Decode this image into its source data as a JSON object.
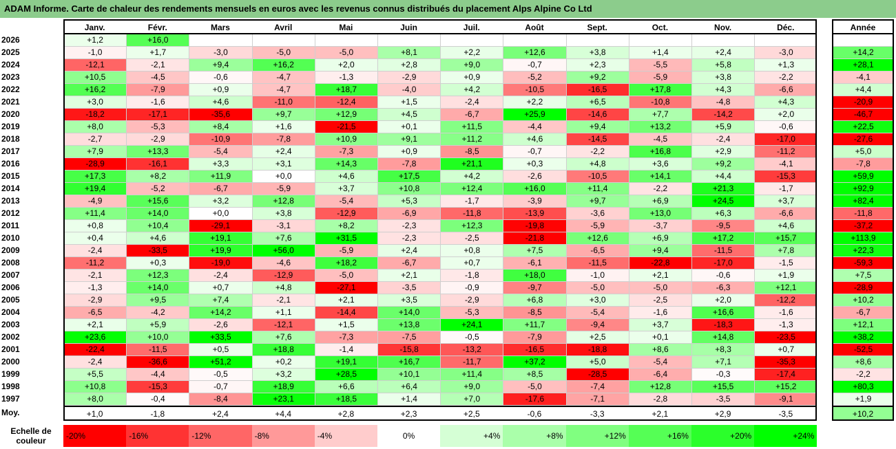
{
  "title": "ADAM Informe. Carte de chaleur des rendements mensuels en euros avec les revenus connus distribués du placement Alps Alpine Co Ltd",
  "month_headers": [
    "Janv.",
    "Févr.",
    "Mars",
    "Avril",
    "Mai",
    "Juin",
    "Juil.",
    "Août",
    "Sept.",
    "Oct.",
    "Nov.",
    "Déc."
  ],
  "annual_header": "Année",
  "average_label": "Moy.",
  "scale_label_line1": "Echelle de",
  "scale_label_line2": "couleur",
  "colors": {
    "neg_max": "#ff0000",
    "pos_max": "#00ff00",
    "neutral": "#ffffff",
    "title_bg": "#8ccc8c"
  },
  "color_scale": [
    {
      "value": -20,
      "label": "-20%"
    },
    {
      "value": -16,
      "label": "-16%"
    },
    {
      "value": -12,
      "label": "-12%"
    },
    {
      "value": -8,
      "label": "-8%"
    },
    {
      "value": -4,
      "label": "-4%"
    },
    {
      "value": 0,
      "label": "0%"
    },
    {
      "value": 4,
      "label": "+4%"
    },
    {
      "value": 8,
      "label": "+8%"
    },
    {
      "value": 12,
      "label": "+12%"
    },
    {
      "value": 16,
      "label": "+16%"
    },
    {
      "value": 20,
      "label": "+20%"
    },
    {
      "value": 24,
      "label": "+24%"
    }
  ],
  "chart_data": {
    "type": "heatmap",
    "title": "ADAM Informe. Carte de chaleur des rendements mensuels en euros avec les revenus connus distribués du placement Alps Alpine Co Ltd",
    "columns": [
      "Janv.",
      "Févr.",
      "Mars",
      "Avril",
      "Mai",
      "Juin",
      "Juil.",
      "Août",
      "Sept.",
      "Oct.",
      "Nov.",
      "Déc."
    ],
    "rows": [
      {
        "year": "2026",
        "months": [
          "+1,2",
          "+16,0",
          null,
          null,
          null,
          null,
          null,
          null,
          null,
          null,
          null,
          null
        ],
        "annual": null
      },
      {
        "year": "2025",
        "months": [
          "-1,0",
          "+1,7",
          "-3,0",
          "-5,0",
          "-5,0",
          "+8,1",
          "+2,2",
          "+12,6",
          "+3,8",
          "+1,4",
          "+2,4",
          "-3,0"
        ],
        "annual": "+14,2"
      },
      {
        "year": "2024",
        "months": [
          "-12,1",
          "-2,1",
          "+9,4",
          "+16,2",
          "+2,0",
          "+2,8",
          "+9,0",
          "-0,7",
          "+2,3",
          "-5,5",
          "+5,8",
          "+1,3"
        ],
        "annual": "+28,1"
      },
      {
        "year": "2023",
        "months": [
          "+10,5",
          "-4,5",
          "-0,6",
          "-4,7",
          "-1,3",
          "-2,9",
          "+0,9",
          "-5,2",
          "+9,2",
          "-5,9",
          "+3,8",
          "-2,2"
        ],
        "annual": "-4,1"
      },
      {
        "year": "2022",
        "months": [
          "+16,2",
          "-7,9",
          "+0,9",
          "-4,7",
          "+18,7",
          "-4,0",
          "+4,2",
          "-10,5",
          "-16,5",
          "+17,8",
          "+4,3",
          "-6,6"
        ],
        "annual": "+4,4"
      },
      {
        "year": "2021",
        "months": [
          "+3,0",
          "-1,6",
          "+4,6",
          "-11,0",
          "-12,4",
          "+1,5",
          "-2,4",
          "+2,2",
          "+6,5",
          "-10,8",
          "-4,8",
          "+4,3"
        ],
        "annual": "-20,9"
      },
      {
        "year": "2020",
        "months": [
          "-18,2",
          "-17,1",
          "-35,6",
          "+9,7",
          "+12,9",
          "+4,5",
          "-6,7",
          "+25,9",
          "-14,6",
          "+7,7",
          "-14,2",
          "+2,0"
        ],
        "annual": "-46,7"
      },
      {
        "year": "2019",
        "months": [
          "+8,0",
          "-5,3",
          "+8,4",
          "+1,6",
          "-21,5",
          "+0,1",
          "+11,5",
          "-4,4",
          "+9,4",
          "+13,2",
          "+5,9",
          "-0,6"
        ],
        "annual": "+22,5"
      },
      {
        "year": "2018",
        "months": [
          "-2,7",
          "-2,9",
          "-10,9",
          "-7,8",
          "+10,9",
          "+9,1",
          "+11,2",
          "+4,6",
          "-14,5",
          "-4,5",
          "-2,4",
          "-17,0"
        ],
        "annual": "-27,6"
      },
      {
        "year": "2017",
        "months": [
          "+7,9",
          "+13,3",
          "-5,4",
          "+2,4",
          "-7,3",
          "+0,9",
          "-8,5",
          "-0,7",
          "-2,2",
          "+16,8",
          "+2,9",
          "-11,2"
        ],
        "annual": "+5,0"
      },
      {
        "year": "2016",
        "months": [
          "-28,9",
          "-16,1",
          "+3,3",
          "+3,1",
          "+14,3",
          "-7,8",
          "+21,1",
          "+0,3",
          "+4,8",
          "+3,6",
          "+9,2",
          "-4,1"
        ],
        "annual": "-7,8"
      },
      {
        "year": "2015",
        "months": [
          "+17,3",
          "+8,2",
          "+11,9",
          "+0,0",
          "+4,6",
          "+17,5",
          "+4,2",
          "-2,6",
          "-10,5",
          "+14,1",
          "+4,4",
          "-15,3"
        ],
        "annual": "+59,9"
      },
      {
        "year": "2014",
        "months": [
          "+19,4",
          "-5,2",
          "-6,7",
          "-5,9",
          "+3,7",
          "+10,8",
          "+12,4",
          "+16,0",
          "+11,4",
          "-2,2",
          "+21,3",
          "-1,7"
        ],
        "annual": "+92,9"
      },
      {
        "year": "2013",
        "months": [
          "-4,9",
          "+15,6",
          "+3,2",
          "+12,8",
          "-5,4",
          "+5,3",
          "-1,7",
          "-3,9",
          "+9,7",
          "+6,9",
          "+24,5",
          "+3,7"
        ],
        "annual": "+82,4"
      },
      {
        "year": "2012",
        "months": [
          "+11,4",
          "+14,0",
          "+0,0",
          "+3,8",
          "-12,9",
          "-6,9",
          "-11,8",
          "-13,9",
          "-3,6",
          "+13,0",
          "+6,3",
          "-6,6"
        ],
        "annual": "-11,8"
      },
      {
        "year": "2011",
        "months": [
          "+0,8",
          "+10,4",
          "-29,1",
          "-3,1",
          "+8,2",
          "-2,3",
          "+12,3",
          "-19,8",
          "-5,9",
          "-3,7",
          "-9,5",
          "+4,6"
        ],
        "annual": "-37,2"
      },
      {
        "year": "2010",
        "months": [
          "+0,4",
          "+4,6",
          "+19,1",
          "+7,6",
          "+31,5",
          "-2,3",
          "-2,5",
          "-21,8",
          "+12,6",
          "+6,9",
          "+17,2",
          "+15,7"
        ],
        "annual": "+113,9"
      },
      {
        "year": "2009",
        "months": [
          "-2,4",
          "-33,5",
          "+19,9",
          "+56,0",
          "-5,9",
          "+2,4",
          "+0,8",
          "+7,5",
          "-6,5",
          "+9,4",
          "-11,5",
          "+7,8"
        ],
        "annual": "+22,3"
      },
      {
        "year": "2008",
        "months": [
          "-11,2",
          "+0,3",
          "-19,0",
          "-4,6",
          "+18,2",
          "-6,7",
          "+0,7",
          "-6,1",
          "-11,5",
          "-22,8",
          "-17,0",
          "-1,5"
        ],
        "annual": "-59,3"
      },
      {
        "year": "2007",
        "months": [
          "-2,1",
          "+12,3",
          "-2,4",
          "-12,9",
          "-5,0",
          "+2,1",
          "-1,8",
          "+18,0",
          "-1,0",
          "+2,1",
          "-0,6",
          "+1,9"
        ],
        "annual": "+7,5"
      },
      {
        "year": "2006",
        "months": [
          "-1,3",
          "+14,0",
          "+0,7",
          "+4,8",
          "-27,1",
          "-3,5",
          "-0,9",
          "-9,7",
          "-5,0",
          "-5,0",
          "-6,3",
          "+12,1"
        ],
        "annual": "-28,9"
      },
      {
        "year": "2005",
        "months": [
          "-2,9",
          "+9,5",
          "+7,4",
          "-2,1",
          "+2,1",
          "+3,5",
          "-2,9",
          "+6,8",
          "+3,0",
          "-2,5",
          "+2,0",
          "-12,2"
        ],
        "annual": "+10,2"
      },
      {
        "year": "2004",
        "months": [
          "-6,5",
          "-4,2",
          "+14,2",
          "+1,1",
          "-14,4",
          "+14,0",
          "-5,3",
          "-8,5",
          "-5,4",
          "-1,6",
          "+16,6",
          "-1,6"
        ],
        "annual": "-6,7"
      },
      {
        "year": "2003",
        "months": [
          "+2,1",
          "+5,9",
          "-2,6",
          "-12,1",
          "+1,5",
          "+13,8",
          "+24,1",
          "+11,7",
          "-9,4",
          "+3,7",
          "-18,3",
          "-1,3"
        ],
        "annual": "+12,1"
      },
      {
        "year": "2002",
        "months": [
          "+23,6",
          "+10,0",
          "+33,5",
          "+7,6",
          "-7,3",
          "-7,5",
          "-0,5",
          "-7,9",
          "+2,5",
          "+0,1",
          "+14,8",
          "-23,5"
        ],
        "annual": "+38,2"
      },
      {
        "year": "2001",
        "months": [
          "-22,4",
          "-11,5",
          "+0,5",
          "+18,8",
          "-1,4",
          "-15,8",
          "-13,2",
          "-16,5",
          "-18,8",
          "+8,6",
          "+8,3",
          "+0,7"
        ],
        "annual": "-52,5"
      },
      {
        "year": "2000",
        "months": [
          "-2,4",
          "-36,6",
          "+51,2",
          "+0,2",
          "+19,1",
          "+16,7",
          "-11,7",
          "+37,2",
          "+5,0",
          "-5,4",
          "+7,1",
          "-35,3"
        ],
        "annual": "+8,6"
      },
      {
        "year": "1999",
        "months": [
          "+5,5",
          "-4,4",
          "-0,5",
          "+3,2",
          "+28,5",
          "+10,1",
          "+11,4",
          "+8,5",
          "-28,5",
          "-6,4",
          "-0,3",
          "-17,4"
        ],
        "annual": "-2,2"
      },
      {
        "year": "1998",
        "months": [
          "+10,8",
          "-15,3",
          "-0,7",
          "+18,9",
          "+6,6",
          "+6,4",
          "+9,0",
          "-5,0",
          "-7,4",
          "+12,8",
          "+15,5",
          "+15,2"
        ],
        "annual": "+80,3"
      },
      {
        "year": "1997",
        "months": [
          "+8,0",
          "-0,4",
          "-8,4",
          "+23,1",
          "+18,5",
          "+1,4",
          "+7,0",
          "-17,6",
          "-7,1",
          "-2,8",
          "-3,5",
          "-9,1"
        ],
        "annual": "+1,9"
      }
    ],
    "averages": [
      "+1,0",
      "-1,8",
      "+2,4",
      "+4,4",
      "+2,8",
      "+2,3",
      "+2,5",
      "-0,6",
      "-3,3",
      "+2,1",
      "+2,9",
      "-3,5"
    ],
    "average_annual": "+10,2"
  }
}
